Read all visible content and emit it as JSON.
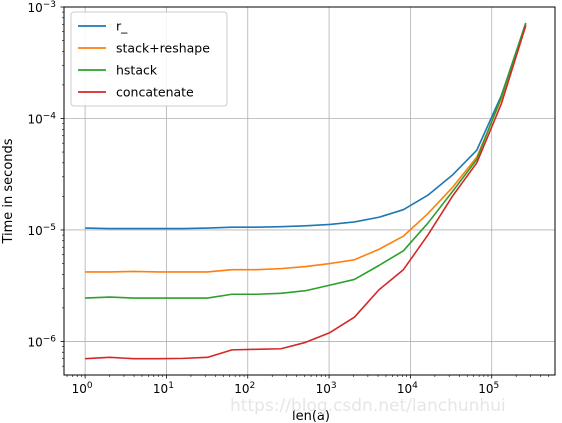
{
  "chart_data": {
    "type": "line",
    "xlabel": "len(a)",
    "ylabel": "Time in seconds",
    "xscale": "log",
    "yscale": "log",
    "xlim": [
      0.55,
      600000
    ],
    "ylim": [
      5e-07,
      0.001
    ],
    "grid": true,
    "legend_position": "top-left",
    "x_ticks": [
      {
        "value": 1,
        "base": "10",
        "exp": "0"
      },
      {
        "value": 10,
        "base": "10",
        "exp": "1"
      },
      {
        "value": 100,
        "base": "10",
        "exp": "2"
      },
      {
        "value": 1000,
        "base": "10",
        "exp": "3"
      },
      {
        "value": 10000,
        "base": "10",
        "exp": "4"
      },
      {
        "value": 100000,
        "base": "10",
        "exp": "5"
      }
    ],
    "y_ticks": [
      {
        "value": 1e-06,
        "base": "10",
        "exp": "−6"
      },
      {
        "value": 1e-05,
        "base": "10",
        "exp": "−5"
      },
      {
        "value": 0.0001,
        "base": "10",
        "exp": "−4"
      },
      {
        "value": 0.001,
        "base": "10",
        "exp": "−3"
      }
    ],
    "x": [
      1,
      2,
      4,
      8,
      16,
      32,
      64,
      128,
      256,
      512,
      1024,
      2048,
      4096,
      8192,
      16384,
      32768,
      65536,
      131072,
      262144
    ],
    "series": [
      {
        "name": "r_",
        "color": "#1f77b4",
        "values": [
          1.04e-05,
          1.03e-05,
          1.03e-05,
          1.03e-05,
          1.03e-05,
          1.04e-05,
          1.06e-05,
          1.06e-05,
          1.07e-05,
          1.09e-05,
          1.12e-05,
          1.18e-05,
          1.3e-05,
          1.52e-05,
          2.05e-05,
          3.1e-05,
          5.2e-05,
          0.00016,
          0.00071
        ]
      },
      {
        "name": "stack+reshape",
        "color": "#ff7f0e",
        "values": [
          4.2e-06,
          4.2e-06,
          4.25e-06,
          4.2e-06,
          4.2e-06,
          4.2e-06,
          4.4e-06,
          4.4e-06,
          4.5e-06,
          4.7e-06,
          5e-06,
          5.4e-06,
          6.7e-06,
          8.8e-06,
          1.4e-05,
          2.4e-05,
          4.5e-05,
          0.00015,
          0.0007
        ]
      },
      {
        "name": "hstack",
        "color": "#2ca02c",
        "values": [
          2.45e-06,
          2.5e-06,
          2.45e-06,
          2.45e-06,
          2.45e-06,
          2.45e-06,
          2.65e-06,
          2.65e-06,
          2.7e-06,
          2.85e-06,
          3.2e-06,
          3.6e-06,
          4.8e-06,
          6.5e-06,
          1.15e-05,
          2.2e-05,
          4.3e-05,
          0.000155,
          0.00072
        ]
      },
      {
        "name": "concatenate",
        "color": "#d62728",
        "values": [
          7e-07,
          7.2e-07,
          7e-07,
          7e-07,
          7.05e-07,
          7.2e-07,
          8.4e-07,
          8.5e-07,
          8.6e-07,
          9.8e-07,
          1.2e-06,
          1.65e-06,
          2.9e-06,
          4.4e-06,
          9e-06,
          2e-05,
          4e-05,
          0.000135,
          0.00068
        ]
      }
    ]
  },
  "watermark": "https://blog.csdn.net/lanchunhui"
}
